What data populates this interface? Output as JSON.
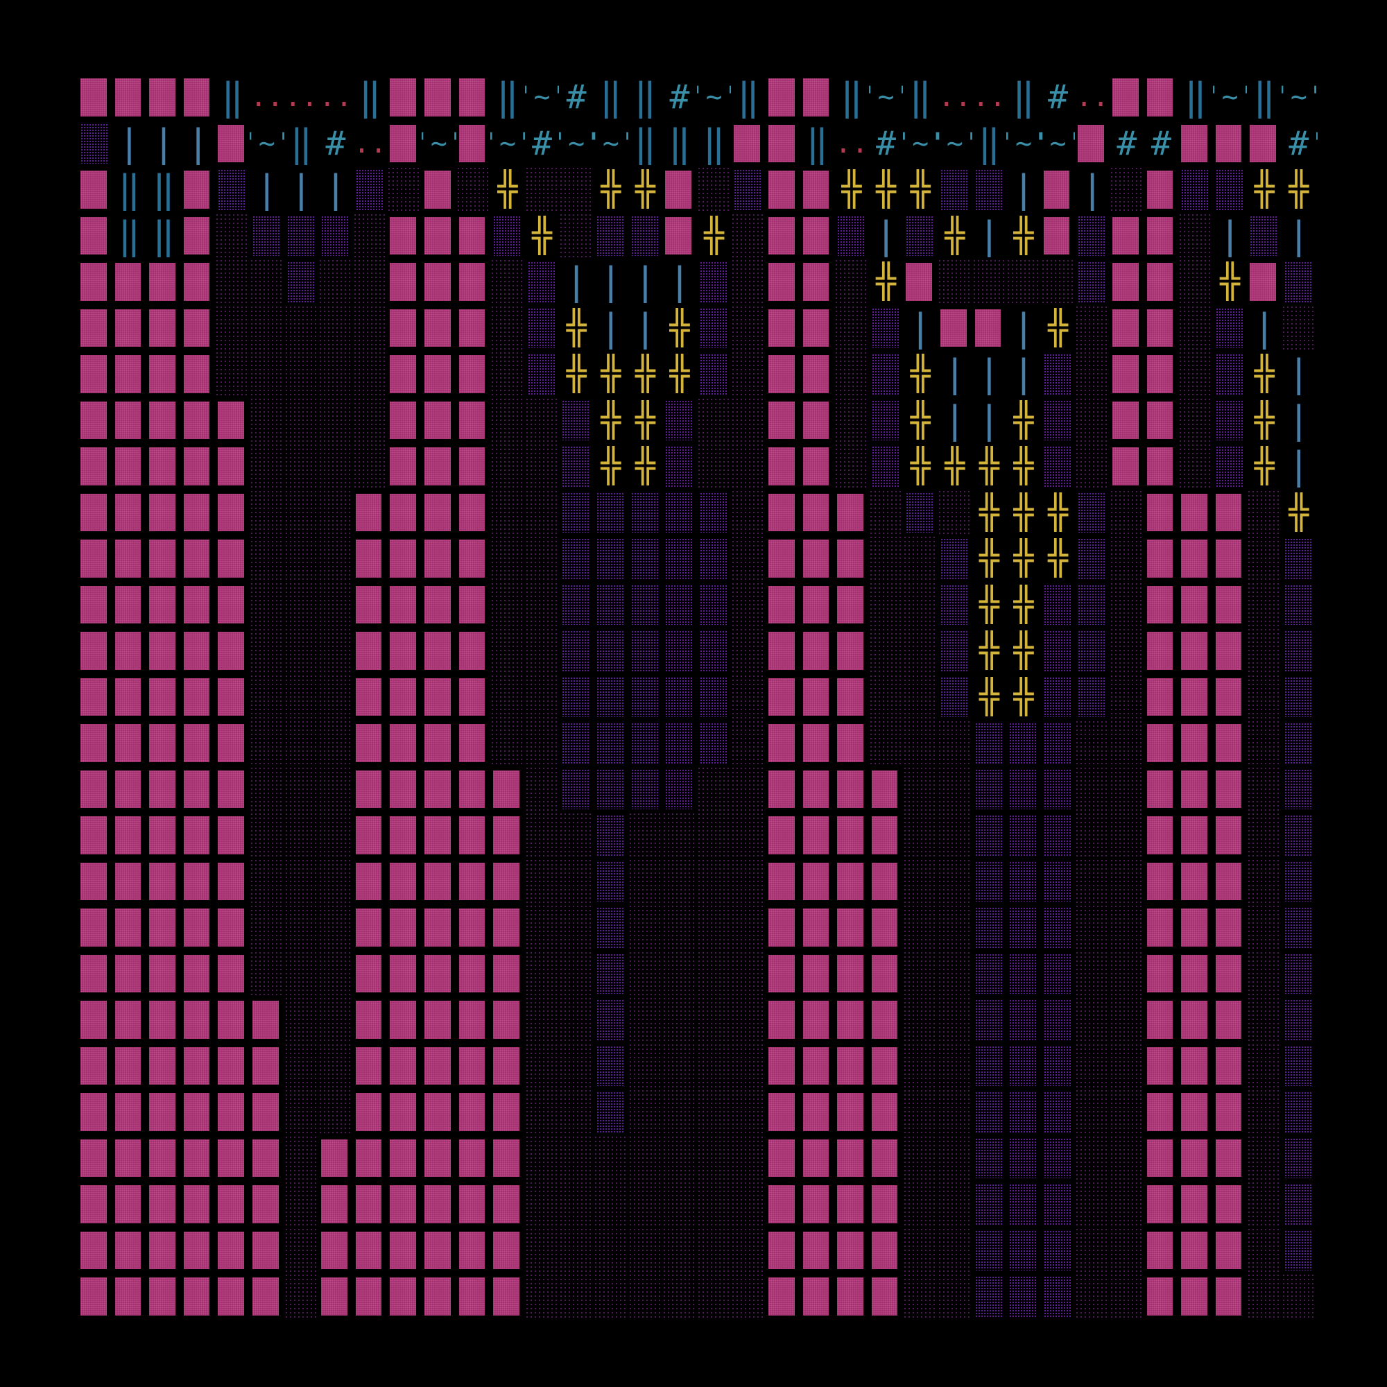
{
  "legend": {
    "W": "wall",
    "f": "dark-floor",
    "p": "purple-floor",
    "+": "rubble",
    "|": "bars",
    "D": "double-bar",
    "~": "water",
    "#": "hash-ground",
    ".": "dots",
    ":": "yellow-dots",
    "_": "empty"
  },
  "glyphs": {
    "rubble": "╬",
    "bars": "|",
    "double_bar": "‖",
    "water": "'~'",
    "hash": "#",
    "dots": "..",
    "ydots": ":"
  },
  "colors": {
    "background": "#000000",
    "wall": "#a0306f",
    "floor_dark": "#5a1f66",
    "floor_purple": "#6e20b0",
    "rubble": "#d4b43a",
    "bars": "#4a7fa8",
    "water": "#3a8fa8",
    "dots": "#b83a52"
  },
  "map": [
    "WWWWD...DWWWD~#DD#~DWWD~D..D#.WWD~D~",
    "p|||W~D#.W~W~#~~DDDWWD.#~~D~~W##WWW#~",
    "WDDWp|||pfWf+ff++WfpWW+++pp|W|fWpp++W",
    "WDDWfpppfWWWp+fppW+fWWp|p+|+WpWWf|p|",
    "WWWWffpffWWWfp||||pfWWf+WffffpWWf+Wpp",
    "WWWWfffffWWWfp+||+pfWWfp|WW|+fWWfp|f",
    "WWWWfffffWWWfp++++pfWWfp+|||pfWWfp+|W",
    "WWWWWffffWWWffp++pffWWfp+||+pfWWfp+||",
    "WWWWWffffWWWffp++pffWWfp++++pfWWfp+||",
    "WWWWWfffWWWWffpppppfWWWfpf+++pfWWWf++|",
    "WWWWWfffWWWWffpppppfWWWffp+++pfWWWfp+|",
    "WWWWWfffWWWWffpppppfWWWffp++ppfWWWfp+:",
    "WWWWWfffWWWWffpppppfWWWffp++ppfWWWfp+:",
    "WWWWWfffWWWWffpppppfWWWffp++ppfWWWfp+:",
    "WWWWWfffWWWWffpppppfWWWfffpppffWWWfp+:",
    "WWWWWfffWWWWWfppppffWWWWffpppffWWWfp+:",
    "WWWWWfffWWWWWffpffffWWWWffpppffWWWfpp:",
    "WWWWWfffWWWWWffpffffWWWWffpppffWWWfpp:",
    "WWWWWfffWWWWWffpffffWWWWffpppffWWWfpp:",
    "WWWWWfffWWWWWffpffffWWWWffpppffWWWfpp:",
    "WWWWWWffWWWWWffpffffWWWWffpppffWWWfpp",
    "WWWWWWffWWWWWffpffffWWWWffpppffWWWfpp",
    "WWWWWWffWWWWWffpffffWWWWffpppffWWWfpp",
    "WWWWWWfWWWWWWfffffffWWWWffpppffWWWfpp",
    "WWWWWWfWWWWWWfffffffWWWWffpppffWWWfpp",
    "WWWWWWfWWWWWWfffffffWWWWffpppffWWWfpp",
    "WWWWWWfWWWWWWfffffffWWWWffpppffWWWffp"
  ]
}
